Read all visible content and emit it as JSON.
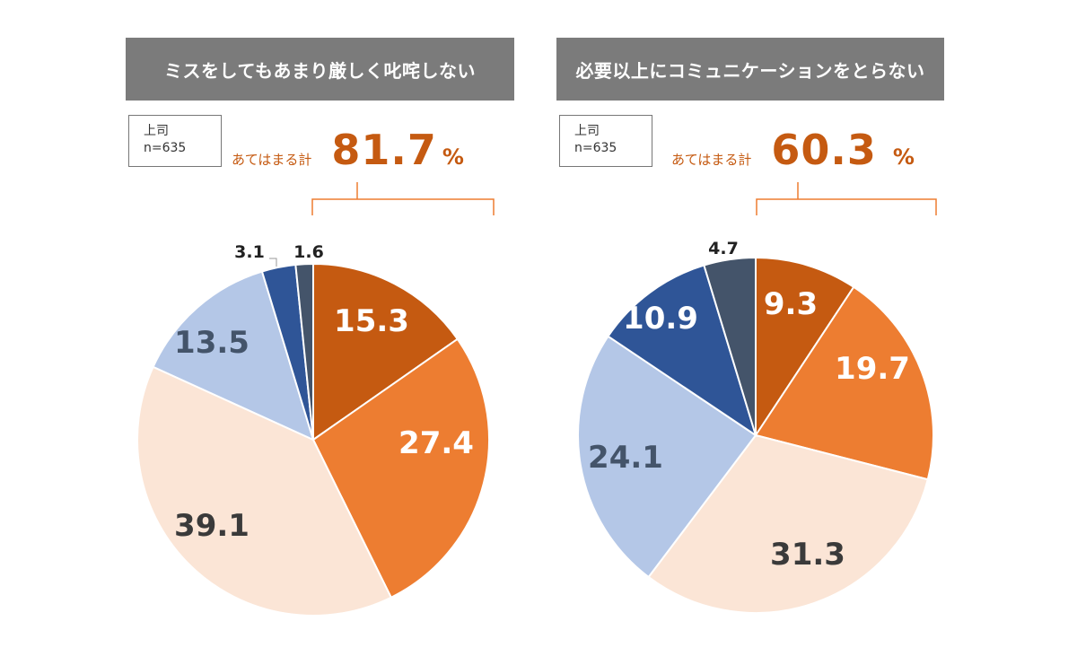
{
  "charts": [
    {
      "title": "ミスをしてもあまり厳しく叱咤しない",
      "sample": {
        "line1": "上司",
        "line2": "n=635"
      },
      "applies_label": "あてはまる計",
      "applies_value": "81.7",
      "applies_unit": "%"
    },
    {
      "title": "必要以上にコミュニケーションをとらない",
      "sample": {
        "line1": "上司",
        "line2": "n=635"
      },
      "applies_label": "あてはまる計",
      "applies_value": "60.3",
      "applies_unit": "%"
    }
  ],
  "chart_data": [
    {
      "type": "pie",
      "title": "ミスをしてもあまり厳しく叱咤しない",
      "values": [
        15.3,
        27.4,
        39.1,
        13.5,
        3.1,
        1.6
      ],
      "labels": [
        "15.3",
        "27.4",
        "39.1",
        "13.5",
        "3.1",
        "1.6"
      ],
      "colors": [
        "#c55a11",
        "#ed7d31",
        "#fbe5d6",
        "#b4c7e7",
        "#2f5597",
        "#44546a"
      ],
      "label_colors": [
        "#ffffff",
        "#ffffff",
        "#3a3a3a",
        "#44546a",
        "#222222",
        "#222222"
      ]
    },
    {
      "type": "pie",
      "title": "必要以上にコミュニケーションをとらない",
      "values": [
        9.3,
        19.7,
        31.3,
        24.1,
        10.9,
        4.7
      ],
      "labels": [
        "9.3",
        "19.7",
        "31.3",
        "24.1",
        "10.9",
        "4.7"
      ],
      "colors": [
        "#c55a11",
        "#ed7d31",
        "#fbe5d6",
        "#b4c7e7",
        "#2f5597",
        "#44546a"
      ],
      "label_colors": [
        "#ffffff",
        "#ffffff",
        "#3a3a3a",
        "#44546a",
        "#ffffff",
        "#222222"
      ]
    }
  ]
}
